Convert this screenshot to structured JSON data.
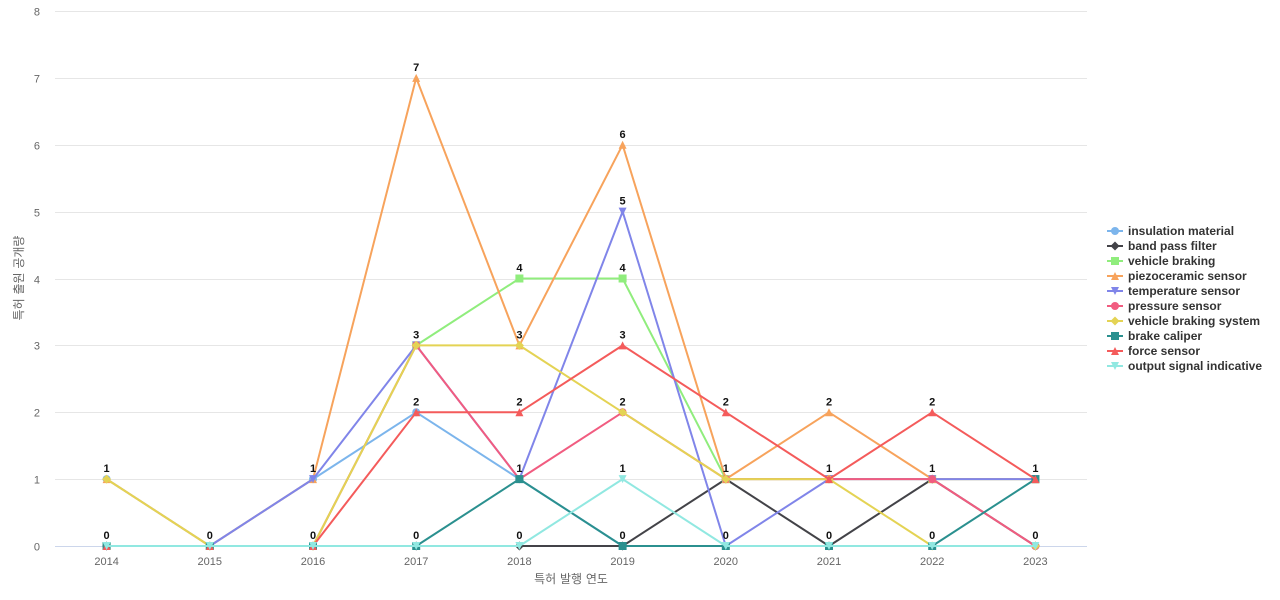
{
  "chart_data": {
    "type": "line",
    "title": "",
    "xlabel": "특허 발행 연도",
    "ylabel": "특허 출원 공개량",
    "ylim": [
      0,
      8
    ],
    "yticks": [
      0,
      1,
      2,
      3,
      4,
      5,
      6,
      7,
      8
    ],
    "grid": true,
    "legend_position": "right",
    "x": [
      "2014",
      "2015",
      "2016",
      "2017",
      "2018",
      "2019",
      "2020",
      "2021",
      "2022",
      "2023"
    ],
    "series": [
      {
        "name": "insulation material",
        "color": "#7cb5ec",
        "marker": "circle",
        "values": [
          1,
          0,
          1,
          2,
          1,
          0,
          0,
          0,
          0,
          0
        ]
      },
      {
        "name": "band pass filter",
        "color": "#434348",
        "marker": "diamond",
        "values": [
          0,
          0,
          0,
          0,
          0,
          0,
          1,
          0,
          1,
          0
        ]
      },
      {
        "name": "vehicle braking",
        "color": "#90ed7d",
        "marker": "square",
        "values": [
          0,
          0,
          0,
          3,
          4,
          4,
          1,
          1,
          1,
          1
        ]
      },
      {
        "name": "piezoceramic sensor",
        "color": "#f7a35c",
        "marker": "triangle",
        "values": [
          1,
          0,
          1,
          7,
          3,
          6,
          1,
          2,
          1,
          1
        ]
      },
      {
        "name": "temperature sensor",
        "color": "#8085e9",
        "marker": "triangle-down",
        "values": [
          0,
          0,
          1,
          3,
          1,
          5,
          0,
          1,
          1,
          1
        ]
      },
      {
        "name": "pressure sensor",
        "color": "#f15c80",
        "marker": "circle",
        "values": [
          0,
          0,
          0,
          3,
          1,
          2,
          1,
          1,
          1,
          0
        ]
      },
      {
        "name": "vehicle braking system",
        "color": "#e4d354",
        "marker": "diamond",
        "values": [
          1,
          0,
          0,
          3,
          3,
          2,
          1,
          1,
          0,
          0
        ]
      },
      {
        "name": "brake caliper",
        "color": "#2b908f",
        "marker": "square",
        "values": [
          0,
          0,
          0,
          0,
          1,
          0,
          0,
          0,
          0,
          1
        ]
      },
      {
        "name": "force sensor",
        "color": "#f45b5b",
        "marker": "triangle",
        "values": [
          0,
          0,
          0,
          2,
          2,
          3,
          2,
          1,
          2,
          1
        ]
      },
      {
        "name": "output signal indicative",
        "color": "#91e8e1",
        "marker": "triangle-down",
        "values": [
          0,
          0,
          0,
          0,
          0,
          1,
          0,
          0,
          0,
          0
        ]
      }
    ],
    "data_labels": [
      {
        "x": "2014",
        "value": 1
      },
      {
        "x": "2014",
        "value": 0
      },
      {
        "x": "2015",
        "value": 0
      },
      {
        "x": "2016",
        "value": 1
      },
      {
        "x": "2016",
        "value": 0
      },
      {
        "x": "2017",
        "value": 7
      },
      {
        "x": "2017",
        "value": 3
      },
      {
        "x": "2017",
        "value": 2
      },
      {
        "x": "2017",
        "value": 0
      },
      {
        "x": "2018",
        "value": 4
      },
      {
        "x": "2018",
        "value": 3
      },
      {
        "x": "2018",
        "value": 2
      },
      {
        "x": "2018",
        "value": 1
      },
      {
        "x": "2018",
        "value": 0
      },
      {
        "x": "2019",
        "value": 6
      },
      {
        "x": "2019",
        "value": 5
      },
      {
        "x": "2019",
        "value": 4
      },
      {
        "x": "2019",
        "value": 3
      },
      {
        "x": "2019",
        "value": 2
      },
      {
        "x": "2019",
        "value": 1
      },
      {
        "x": "2019",
        "value": 0
      },
      {
        "x": "2020",
        "value": 2
      },
      {
        "x": "2020",
        "value": 1
      },
      {
        "x": "2020",
        "value": 0
      },
      {
        "x": "2021",
        "value": 2
      },
      {
        "x": "2021",
        "value": 1
      },
      {
        "x": "2021",
        "value": 0
      },
      {
        "x": "2022",
        "value": 2
      },
      {
        "x": "2022",
        "value": 1
      },
      {
        "x": "2022",
        "value": 0
      },
      {
        "x": "2023",
        "value": 1
      },
      {
        "x": "2023",
        "value": 0
      }
    ]
  }
}
